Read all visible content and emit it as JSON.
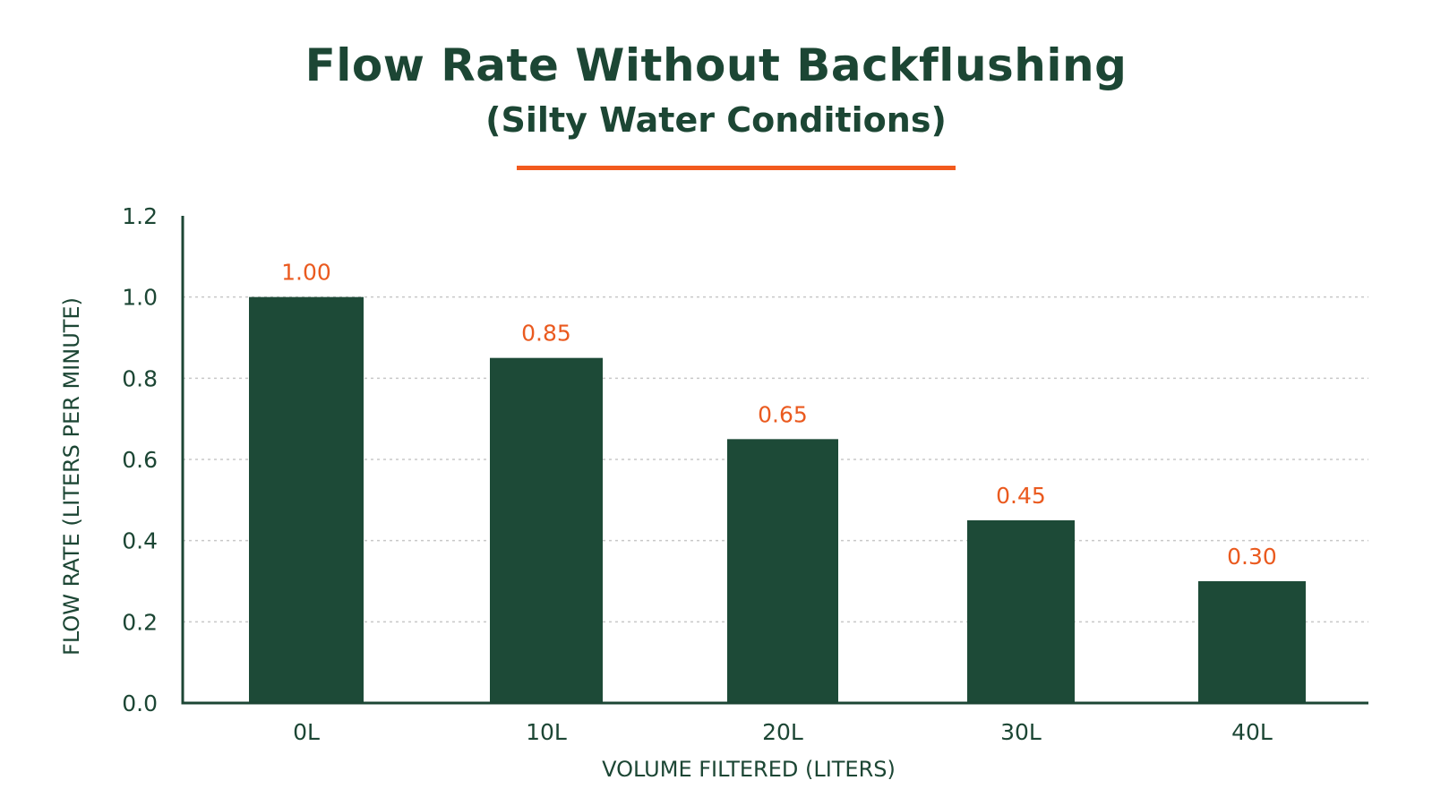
{
  "chart_data": {
    "type": "bar",
    "title": "Flow Rate Without Backflushing",
    "subtitle": "(Silty Water Conditions)",
    "categories": [
      "0L",
      "10L",
      "20L",
      "30L",
      "40L"
    ],
    "values": [
      1.0,
      0.85,
      0.65,
      0.45,
      0.3
    ],
    "value_labels": [
      "1.00",
      "0.85",
      "0.65",
      "0.45",
      "0.30"
    ],
    "xlabel": "VOLUME FILTERED (LITERS)",
    "ylabel": "FLOW RATE (LITERS PER MINUTE)",
    "ylim": [
      0,
      1.2
    ],
    "yticks": [
      "0.0",
      "0.2",
      "0.4",
      "0.6",
      "0.8",
      "1.0",
      "1.2"
    ],
    "grid": true,
    "colors": {
      "bar": "#1d4a37",
      "text": "#1c4634",
      "value_label": "#ea5a1f",
      "accent_line": "#f25a1d",
      "grid": "#c8c8c8"
    }
  }
}
